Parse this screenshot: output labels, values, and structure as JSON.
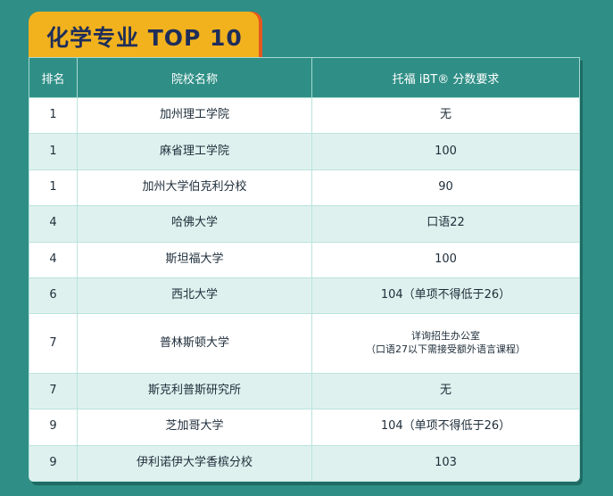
{
  "title": "化学专业  TOP 10",
  "headers": {
    "rank": "排名",
    "school": "院校名称",
    "toefl": "托福 iBT® 分数要求"
  },
  "rows": [
    {
      "rank": "1",
      "school": "加州理工学院",
      "toefl": "无"
    },
    {
      "rank": "1",
      "school": "麻省理工学院",
      "toefl": "100"
    },
    {
      "rank": "1",
      "school": "加州大学伯克利分校",
      "toefl": "90"
    },
    {
      "rank": "4",
      "school": "哈佛大学",
      "toefl": "口语22"
    },
    {
      "rank": "4",
      "school": "斯坦福大学",
      "toefl": "100"
    },
    {
      "rank": "6",
      "school": "西北大学",
      "toefl": "104（单项不得低于26）"
    },
    {
      "rank": "7",
      "school": "普林斯顿大学",
      "toefl_main": "详询招生办公室",
      "toefl_sub": "（口语27以下需接受额外语言课程）"
    },
    {
      "rank": "7",
      "school": "斯克利普斯研究所",
      "toefl": "无"
    },
    {
      "rank": "9",
      "school": "芝加哥大学",
      "toefl": "104（单项不得低于26）"
    },
    {
      "rank": "9",
      "school": "伊利诺伊大学香槟分校",
      "toefl": "103"
    }
  ]
}
